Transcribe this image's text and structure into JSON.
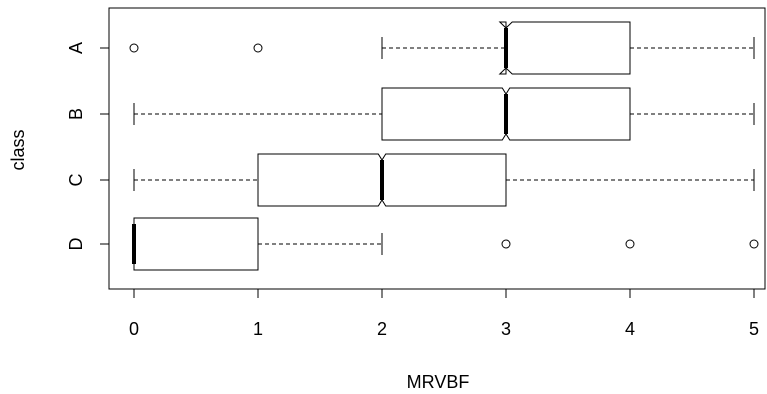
{
  "chart_data": {
    "type": "boxplot",
    "orientation": "horizontal",
    "notched": true,
    "xlabel": "MRVBF",
    "ylabel": "class",
    "xlim": [
      -0.22,
      5.12
    ],
    "xticks": [
      0,
      1,
      2,
      3,
      4,
      5
    ],
    "categories": [
      "A",
      "B",
      "C",
      "D"
    ],
    "boxes": [
      {
        "label": "A",
        "whisker_low": 2,
        "q1": 3,
        "median": 3,
        "q3": 4,
        "whisker_high": 5,
        "notch": [
          2.95,
          3.05
        ],
        "outliers": [
          0,
          1
        ]
      },
      {
        "label": "B",
        "whisker_low": 0,
        "q1": 2,
        "median": 3,
        "q3": 4,
        "whisker_high": 5,
        "notch": [
          2.97,
          3.03
        ],
        "outliers": []
      },
      {
        "label": "C",
        "whisker_low": 0,
        "q1": 1,
        "median": 2,
        "q3": 3,
        "whisker_high": 5,
        "notch": [
          1.97,
          2.03
        ],
        "outliers": []
      },
      {
        "label": "D",
        "whisker_low": 0,
        "q1": 0,
        "median": 0,
        "q3": 1,
        "whisker_high": 2,
        "notch": [
          0,
          0
        ],
        "outliers": [
          3,
          4,
          5
        ]
      }
    ],
    "grid": false,
    "legend": "none",
    "colors": {
      "box_fill": "#ffffff",
      "stroke": "#000000"
    }
  }
}
